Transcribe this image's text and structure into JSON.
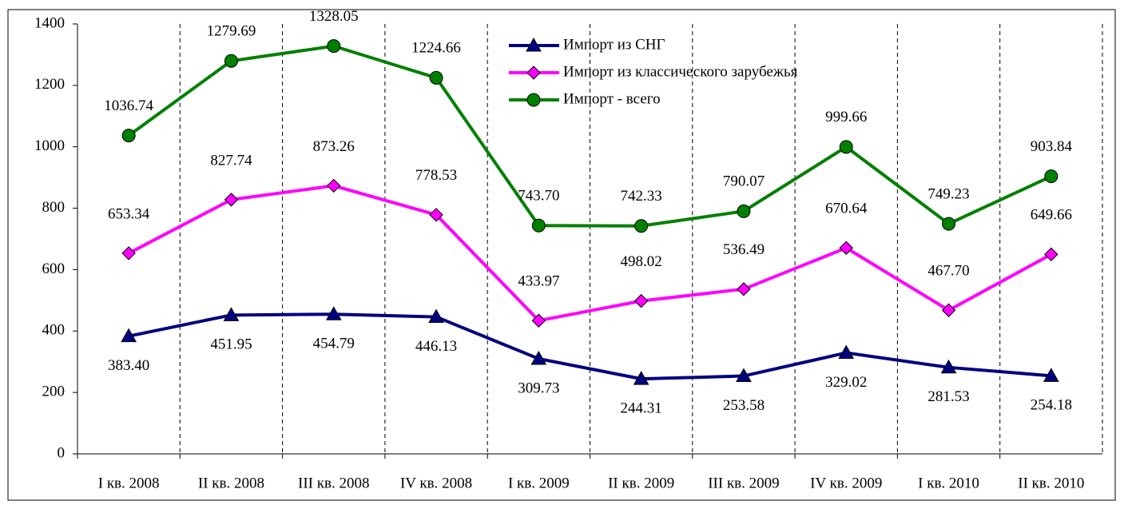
{
  "chart_data": {
    "type": "line",
    "categories": [
      "I кв. 2008",
      "II кв. 2008",
      "III кв. 2008",
      "IV кв. 2008",
      "I кв. 2009",
      "II кв. 2009",
      "III кв. 2009",
      "IV кв. 2009",
      "I кв. 2010",
      "II кв. 2010"
    ],
    "series": [
      {
        "name": "Импорт из СНГ",
        "color": "#000080",
        "marker": "triangle",
        "values": [
          383.4,
          451.95,
          454.79,
          446.13,
          309.73,
          244.31,
          253.58,
          329.02,
          281.53,
          254.18
        ],
        "value_labels": [
          "383.40",
          "451.95",
          "454.79",
          "446.13",
          "309.73",
          "244.31",
          "253.58",
          "329.02",
          "281.53",
          "254.18"
        ]
      },
      {
        "name": "Импорт из классического зарубежья",
        "color": "#ff00ff",
        "marker": "diamond",
        "values": [
          653.34,
          827.74,
          873.26,
          778.53,
          433.97,
          498.02,
          536.49,
          670.64,
          467.7,
          649.66
        ],
        "value_labels": [
          "653.34",
          "827.74",
          "873.26",
          "778.53",
          "433.97",
          "498.02",
          "536.49",
          "670.64",
          "467.70",
          "649.66"
        ]
      },
      {
        "name": "Импорт - всего",
        "color": "#008000",
        "marker": "circle",
        "values": [
          1036.74,
          1279.69,
          1328.05,
          1224.66,
          743.7,
          742.33,
          790.07,
          999.66,
          749.23,
          903.84
        ],
        "value_labels": [
          "1036.74",
          "1279.69",
          "1328.05",
          "1224.66",
          "743.70",
          "742.33",
          "790.07",
          "999.66",
          "749.23",
          "903.84"
        ]
      }
    ],
    "ylim": [
      0,
      1400
    ],
    "yticks": [
      0,
      200,
      400,
      600,
      800,
      1000,
      1200,
      1400
    ]
  }
}
